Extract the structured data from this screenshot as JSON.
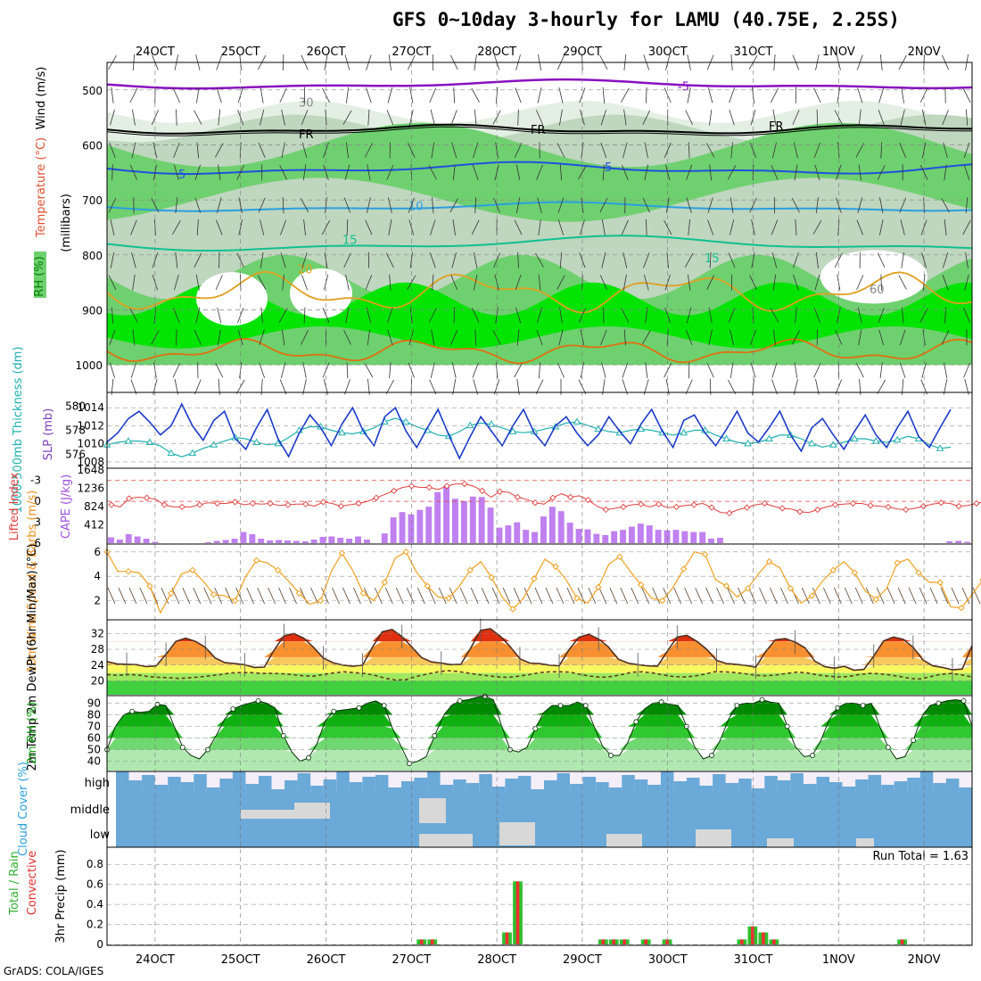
{
  "title": "GFS 0~10day 3-hourly for LAMU (40.75E, 2.25S)",
  "credit": "GrADS: COLA/IGES",
  "colors": {
    "rh_light": "#e3efe3",
    "rh_mid": "#bfd6bf",
    "rh_green": "#6fd06f",
    "rh_bright": "#00e400",
    "temp_minus5": "#8a10c0",
    "temp_5": "#2050e0",
    "temp_10": "#2aa0e0",
    "temp_15": "#10c090",
    "temp_20": "#e0a020",
    "temp_25": "#e07010",
    "slp": "#1a3ac8",
    "thickness": "#20b0b0",
    "cape_bar": "#c080f0",
    "lifted": "#e04040",
    "wind10": "#f0a020",
    "tmax_fill": "#f07010",
    "dewpt": "#604020",
    "rh2m": "#10b010",
    "cloud": "#6aa9d8",
    "cloud_gap": "#d8d8d8",
    "precip_total": "#30c030",
    "precip_conv": "#f03030"
  },
  "chart_data": [
    {
      "type": "heatmap",
      "ylabels": [
        "Wind (m/s)",
        "Temperature (°C)",
        "RH (%)",
        "(millibars)"
      ],
      "y": [
        500,
        600,
        700,
        800,
        900,
        1000
      ],
      "contour_labels": [
        "-5",
        "FR",
        "5",
        "10",
        "15",
        "20",
        "60",
        "30"
      ],
      "x": [
        "24OCT",
        "25OCT",
        "26OCT",
        "27OCT",
        "28OCT",
        "29OCT",
        "30OCT",
        "31OCT",
        "1NOV",
        "2NOV"
      ]
    },
    {
      "type": "line",
      "ylabel_left": "1000-500mb Thickness (dm)",
      "ylabel_right": "SLP (mb)",
      "left_ticks": [
        "580",
        "578",
        "576"
      ],
      "right_ticks": [
        "1014",
        "1012",
        "1010",
        "1008"
      ],
      "series": [
        {
          "name": "SLP",
          "axis": "right",
          "values": [
            1010.2,
            1011.2,
            1012.8,
            1013.6,
            1012.4,
            1011.0,
            1012.0,
            1014.4,
            1012.0,
            1010.4,
            1012.6,
            1013.6,
            1010.6,
            1009.4,
            1011.8,
            1013.8,
            1010.6,
            1008.6,
            1011.2,
            1013.2,
            1011.8,
            1009.8,
            1012.2,
            1014.0,
            1011.4,
            1009.8,
            1013.0,
            1014.0,
            1011.4,
            1009.6,
            1011.8,
            1013.8,
            1011.0,
            1008.4,
            1010.8,
            1013.0,
            1011.4,
            1009.8,
            1012.0,
            1013.8,
            1011.2,
            1009.8,
            1012.0,
            1013.0,
            1011.2,
            1009.8,
            1011.0,
            1013.0,
            1011.4,
            1010.0,
            1012.2,
            1013.8,
            1011.4,
            1009.6,
            1012.6,
            1013.2,
            1011.2,
            1009.8,
            1011.6,
            1013.6,
            1011.2,
            1010.2,
            1011.8,
            1013.6,
            1011.0,
            1009.2,
            1011.8,
            1012.8,
            1011.0,
            1009.4,
            1011.4,
            1013.2,
            1011.0,
            1009.6,
            1011.8,
            1013.6,
            1010.8,
            1009.6,
            1011.8,
            1013.8
          ]
        },
        {
          "name": "Thickness",
          "axis": "left",
          "values": [
            576.8,
            577.0,
            577.1,
            577.1,
            577.0,
            576.7,
            576.1,
            575.8,
            576.1,
            576.5,
            576.8,
            577.1,
            577.4,
            577.3,
            577.0,
            576.8,
            576.9,
            577.4,
            578.0,
            578.3,
            578.3,
            578.0,
            577.8,
            577.7,
            577.9,
            578.2,
            578.7,
            579.0,
            578.7,
            578.3,
            578.0,
            577.6,
            577.5,
            577.9,
            578.4,
            578.6,
            578.5,
            578.2,
            577.9,
            577.8,
            577.9,
            578.1,
            578.3,
            578.6,
            578.7,
            578.4,
            578.1,
            577.9,
            577.8,
            578.0,
            578.1,
            578.0,
            577.8,
            577.6,
            577.8,
            578.0,
            578.0,
            577.6,
            577.3,
            577.0,
            576.9,
            577.0,
            577.3,
            577.6,
            577.6,
            577.3,
            576.9,
            576.6,
            576.8,
            577.0,
            577.3,
            577.3,
            577.1,
            577.0,
            577.2,
            577.5,
            577.3,
            576.8,
            576.5,
            576.6
          ]
        }
      ]
    },
    {
      "type": "bar",
      "ylabel_left": "Lifted Index",
      "ylabel_right": "CAPE (J/kg)",
      "left_ticks": [
        "-3",
        "0",
        "3",
        "6"
      ],
      "right_ticks": [
        "1648",
        "1236",
        "824",
        "412"
      ],
      "series": [
        {
          "name": "CAPE",
          "axis": "right",
          "values": [
            130,
            80,
            200,
            150,
            100,
            30,
            0,
            0,
            0,
            0,
            0,
            20,
            50,
            70,
            100,
            250,
            200,
            100,
            60,
            70,
            60,
            50,
            40,
            80,
            140,
            150,
            120,
            100,
            150,
            80,
            0,
            220,
            580,
            700,
            650,
            750,
            820,
            1150,
            1280,
            1000,
            950,
            1050,
            1040,
            800,
            350,
            400,
            470,
            300,
            250,
            600,
            820,
            720,
            460,
            320,
            310,
            210,
            180,
            270,
            300,
            370,
            440,
            400,
            300,
            290,
            300,
            270,
            250,
            250,
            100,
            120,
            0,
            0,
            0,
            0,
            0,
            0,
            0,
            0,
            0,
            0,
            0,
            0,
            0,
            0,
            0,
            0,
            0,
            0,
            0,
            0,
            0,
            0,
            0,
            0,
            0,
            40,
            50,
            30
          ]
        },
        {
          "name": "Lifted Index",
          "axis": "left",
          "values": [
            0.5,
            0.8,
            -0.4,
            -0.6,
            -0.5,
            -0.3,
            0.5,
            0.8,
            0.8,
            0.8,
            0.5,
            0.2,
            0.3,
            0.3,
            0.1,
            0.5,
            0.3,
            0.4,
            0.3,
            0.6,
            0.5,
            0.4,
            0.4,
            0.7,
            0.1,
            0.3,
            0.7,
            0.5,
            0.3,
            0.0,
            -0.5,
            -1.0,
            -1.5,
            -2.0,
            -2.2,
            -2.0,
            -2.0,
            -1.7,
            -2.2,
            -2.5,
            -2.5,
            -2.2,
            -1.5,
            -0.6,
            -1.4,
            -1.3,
            -0.6,
            -0.3,
            0.2,
            0.4,
            -0.5,
            -1.1,
            -0.6,
            -0.8,
            -0.2,
            0.7,
            1.2,
            1.0,
            0.8,
            0.5,
            0.4,
            0.8,
            0.4,
            0.9,
            0.8,
            0.6,
            0.5,
            0.3,
            0.9,
            1.6,
            1.7,
            1.2,
            0.9,
            0.5,
            0.3,
            0.7,
            1.0,
            1.1,
            1.5,
            1.6,
            1.2,
            0.8,
            0.5,
            0.4,
            0.3,
            0.3,
            0.6,
            0.7,
            0.8,
            1.1,
            1.2,
            1.0,
            0.7,
            0.4,
            0.2,
            0.3,
            0.7,
            0.6,
            0.3,
            0.0
          ]
        }
      ]
    },
    {
      "type": "line",
      "ylabel": "10m Wind Speed & Barbs (m/s)",
      "yticks": [
        "6",
        "4",
        "2"
      ],
      "series": [
        {
          "name": "10m Wind Speed",
          "values": [
            6.0,
            4.4,
            4.4,
            4.3,
            3.2,
            1.0,
            2.6,
            4.2,
            4.5,
            3.6,
            2.5,
            2.4,
            2.0,
            4.0,
            5.3,
            5.1,
            4.5,
            3.6,
            2.6,
            1.7,
            2.0,
            4.4,
            5.9,
            4.5,
            2.6,
            2.0,
            3.5,
            5.5,
            6.0,
            4.3,
            3.2,
            2.3,
            2.2,
            3.2,
            4.5,
            5.2,
            3.9,
            2.3,
            1.3,
            2.2,
            3.8,
            5.4,
            4.8,
            3.7,
            2.2,
            1.8,
            3.1,
            5.0,
            5.6,
            4.4,
            3.3,
            2.2,
            2.0,
            3.1,
            4.6,
            6.0,
            5.8,
            3.7,
            3.2,
            2.3,
            3.0,
            4.2,
            5.2,
            4.7,
            3.0,
            1.8,
            2.4,
            3.6,
            4.5,
            5.2,
            4.3,
            2.8,
            2.1,
            3.0,
            5.1,
            5.4,
            4.3,
            3.5,
            3.5,
            1.5,
            1.4,
            2.5,
            3.7,
            4.5
          ]
        }
      ]
    },
    {
      "type": "area",
      "ylabel": "2m Temp 2m DewPt (6hr Min/Max) (°C)",
      "yticks": [
        "32",
        "28",
        "24",
        "20"
      ],
      "series": [
        {
          "name": "2m Temp",
          "values": [
            24.9,
            24.3,
            24.2,
            24.1,
            23.6,
            23.8,
            26.7,
            30.0,
            30.8,
            30.0,
            28.5,
            25.8,
            24.6,
            24.4,
            24.1,
            23.4,
            23.5,
            27.8,
            31.4,
            32.0,
            30.8,
            28.5,
            25.8,
            24.6,
            24.0,
            23.7,
            24.0,
            28.5,
            32.4,
            33.0,
            31.2,
            28.6,
            25.9,
            24.8,
            24.5,
            24.1,
            24.2,
            28.3,
            32.8,
            33.2,
            31.3,
            28.7,
            25.6,
            24.5,
            24.4,
            24.0,
            23.8,
            27.9,
            31.0,
            31.8,
            30.6,
            28.6,
            25.5,
            24.5,
            24.1,
            23.8,
            23.7,
            27.5,
            31.1,
            31.5,
            30.0,
            28.0,
            25.2,
            24.4,
            24.2,
            23.9,
            23.5,
            27.4,
            30.4,
            30.7,
            29.8,
            28.4,
            25.0,
            23.6,
            23.2,
            23.7,
            22.7,
            22.9,
            26.3,
            30.1,
            31.1,
            30.5,
            28.5,
            25.3,
            23.8,
            23.4,
            22.8,
            23.0,
            28.9
          ]
        },
        {
          "name": "2m DewPt",
          "values": [
            21.6,
            21.4,
            21.6,
            21.5,
            21.1,
            20.9,
            20.8,
            20.6,
            20.8,
            21.0,
            21.3,
            21.6,
            22.0,
            22.1,
            22.1,
            21.9,
            21.9,
            21.8,
            21.6,
            21.3,
            21.2,
            21.6,
            22.0,
            22.3,
            22.1,
            21.9,
            21.4,
            20.7,
            20.2,
            20.3,
            21.1,
            21.7,
            22.2,
            22.6,
            22.4,
            22.0,
            21.6,
            21.3,
            21.0,
            20.9,
            21.2,
            21.6,
            22.1,
            22.3,
            22.3,
            22.2,
            21.6,
            21.2,
            20.9,
            21.1,
            21.6,
            22.2,
            22.3,
            22.0,
            21.5,
            21.1,
            21.0,
            21.2,
            21.7,
            22.3,
            22.3,
            22.1,
            21.8,
            21.4,
            21.3,
            21.5,
            21.9,
            22.2,
            22.0,
            21.5,
            21.2,
            21.0,
            21.1,
            21.6,
            21.9,
            21.8,
            21.5,
            21.1,
            20.6,
            20.5,
            21.1,
            21.7,
            21.9,
            21.5,
            21.0
          ]
        }
      ]
    },
    {
      "type": "area",
      "ylabel": "2m RH (%)",
      "yticks": [
        "90",
        "80",
        "70",
        "60",
        "50",
        "40"
      ],
      "series": [
        {
          "name": "2m RH",
          "values": [
            50,
            70,
            80,
            83,
            82,
            83,
            89,
            88,
            70,
            52,
            45,
            42,
            50,
            62,
            76,
            85,
            88,
            90,
            92,
            90,
            86,
            62,
            48,
            40,
            43,
            55,
            75,
            83,
            84,
            85,
            86,
            90,
            92,
            88,
            68,
            53,
            38,
            40,
            44,
            62,
            78,
            88,
            92,
            93,
            95,
            96,
            93,
            70,
            50,
            48,
            52,
            68,
            82,
            88,
            88,
            88,
            91,
            88,
            70,
            53,
            45,
            45,
            56,
            74,
            85,
            90,
            91,
            89,
            88,
            70,
            52,
            42,
            45,
            58,
            76,
            88,
            90,
            90,
            93,
            91,
            90,
            70,
            52,
            44,
            45,
            58,
            76,
            86,
            90,
            90,
            88,
            90,
            70,
            52,
            42,
            44,
            58,
            78,
            88,
            90,
            92,
            93,
            92,
            70
          ]
        }
      ]
    },
    {
      "type": "area",
      "ylabel": "Cloud Cover (%)",
      "yticks": [
        "high",
        "middle",
        "low"
      ]
    },
    {
      "type": "bar",
      "ylabel_left": "Total / Rain",
      "ylabel_right": "Convective",
      "ylabel": "3hr Precip (mm)",
      "yticks": [
        "0.8",
        "0.6",
        "0.4",
        "0.2",
        "0"
      ],
      "annotation": "Run Total = 1.63",
      "series": [
        {
          "name": "Total / Rain",
          "points": [
            [
              29,
              0.05
            ],
            [
              30,
              0.05
            ],
            [
              37,
              0.12
            ],
            [
              38,
              0.63
            ],
            [
              46,
              0.05
            ],
            [
              47,
              0.05
            ],
            [
              48,
              0.05
            ],
            [
              50,
              0.05
            ],
            [
              52,
              0.05
            ],
            [
              59,
              0.05
            ],
            [
              60,
              0.18
            ],
            [
              61,
              0.12
            ],
            [
              62,
              0.05
            ],
            [
              74,
              0.05
            ]
          ]
        },
        {
          "name": "Convective",
          "points": [
            [
              29,
              0.05
            ],
            [
              30,
              0.05
            ],
            [
              37,
              0.12
            ],
            [
              38,
              0.63
            ],
            [
              46,
              0.05
            ],
            [
              47,
              0.05
            ],
            [
              48,
              0.05
            ],
            [
              50,
              0.05
            ],
            [
              52,
              0.05
            ],
            [
              59,
              0.05
            ],
            [
              60,
              0.18
            ],
            [
              61,
              0.12
            ],
            [
              62,
              0.05
            ],
            [
              74,
              0.05
            ]
          ]
        }
      ]
    }
  ]
}
